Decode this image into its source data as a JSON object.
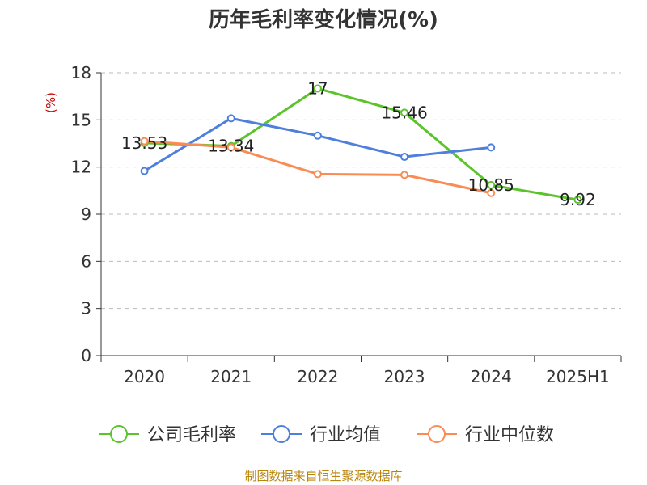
{
  "chart_data": {
    "type": "line",
    "title": "历年毛利率变化情况(%)",
    "ylabel": "(%)",
    "xlabel": "",
    "categories": [
      "2020",
      "2021",
      "2022",
      "2023",
      "2024",
      "2025H1"
    ],
    "ylim": [
      0,
      18
    ],
    "yticks": [
      0,
      3,
      6,
      9,
      12,
      15,
      18
    ],
    "grid": true,
    "legend_position": "bottom",
    "series": [
      {
        "name": "公司毛利率",
        "color": "#5bc42b",
        "values": [
          13.53,
          13.34,
          17,
          15.46,
          10.85,
          9.92
        ],
        "labels": [
          "13.53",
          "13.34",
          "17",
          "15.46",
          "10.85",
          "9.92"
        ]
      },
      {
        "name": "行业均值",
        "color": "#4e7fdc",
        "values": [
          11.75,
          15.1,
          14.0,
          12.65,
          13.25,
          null
        ]
      },
      {
        "name": "行业中位数",
        "color": "#f98c55",
        "values": [
          13.65,
          13.25,
          11.55,
          11.5,
          10.35,
          null
        ]
      }
    ]
  },
  "footer": {
    "source": "制图数据来自恒生聚源数据库"
  }
}
